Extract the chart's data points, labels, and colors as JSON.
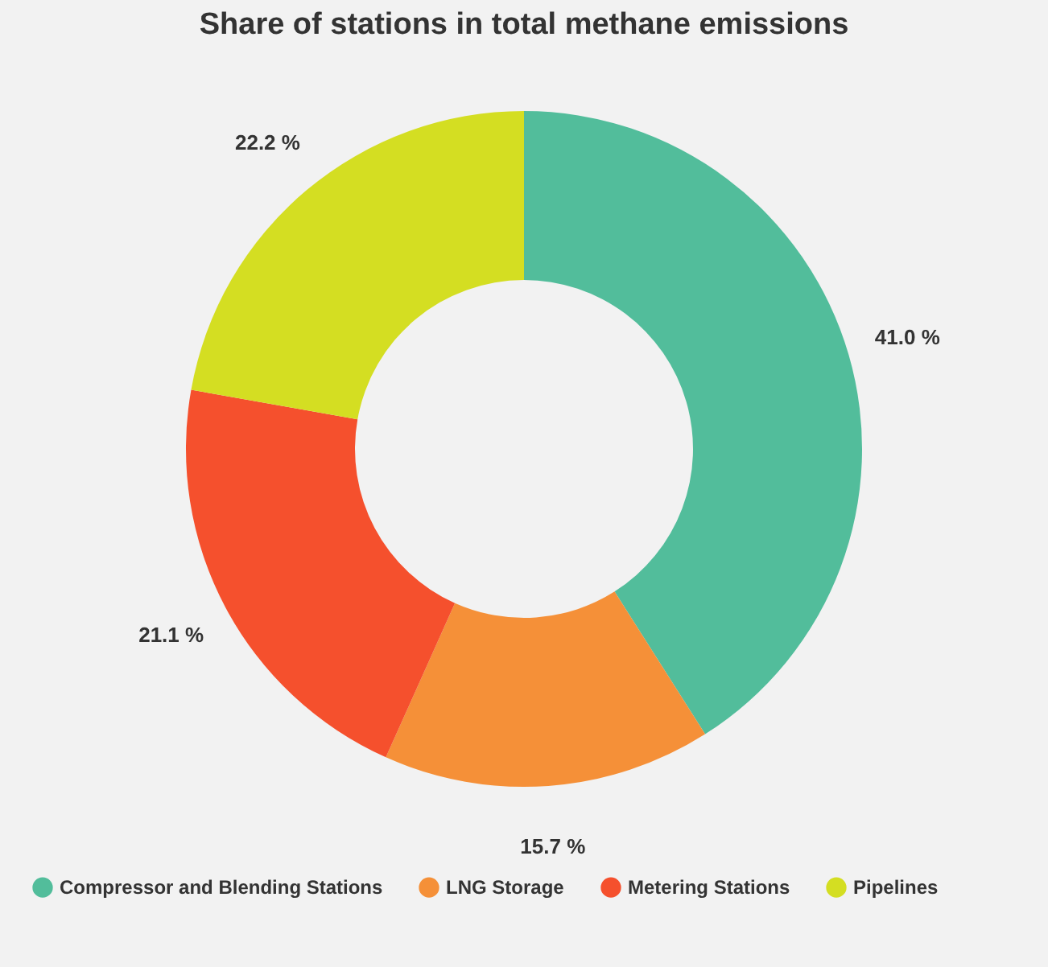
{
  "chart_data": {
    "type": "donut",
    "title": "Share of stations in total methane emissions",
    "categories": [
      "Compressor and Blending Stations",
      "LNG Storage",
      "Metering Stations",
      "Pipelines"
    ],
    "values": [
      41.0,
      15.7,
      21.1,
      22.2
    ],
    "value_labels": [
      "41.0 %",
      "15.7 %",
      "21.1 %",
      "22.2 %"
    ],
    "colors": [
      "#52bd9b",
      "#f59038",
      "#f5502d",
      "#d4de22"
    ],
    "legend": "bottom"
  }
}
